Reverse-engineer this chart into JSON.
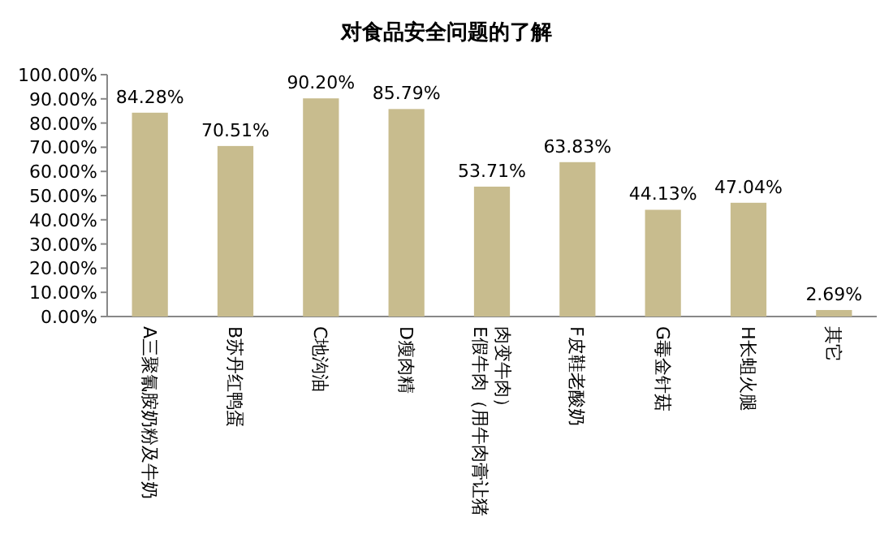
{
  "chart_data": {
    "type": "bar",
    "title": "对食品安全问题的了解",
    "categories": [
      "A三聚氰胺奶粉及牛奶",
      "B苏丹红鸭蛋",
      "C地沟油",
      "D瘦肉精",
      "E假牛肉（用牛肉膏让猪肉变牛肉）",
      "F皮鞋老酸奶",
      "G毒金针菇",
      "H长蛆火腿",
      "其它"
    ],
    "values": [
      84.28,
      70.51,
      90.2,
      85.79,
      53.71,
      63.83,
      44.13,
      47.04,
      2.69
    ],
    "value_labels": [
      "84.28%",
      "70.51%",
      "90.20%",
      "85.79%",
      "53.71%",
      "63.83%",
      "44.13%",
      "47.04%",
      "2.69%"
    ],
    "color": "#c8bc8e",
    "ylim": [
      0,
      100
    ],
    "yticks": [
      {
        "value": 0,
        "label": "0.00%"
      },
      {
        "value": 10,
        "label": "10.00%"
      },
      {
        "value": 20,
        "label": "20.00%"
      },
      {
        "value": 30,
        "label": "30.00%"
      },
      {
        "value": 40,
        "label": "40.00%"
      },
      {
        "value": 50,
        "label": "50.00%"
      },
      {
        "value": 60,
        "label": "60.00%"
      },
      {
        "value": 70,
        "label": "70.00%"
      },
      {
        "value": 80,
        "label": "80.00%"
      },
      {
        "value": 90,
        "label": "90.00%"
      },
      {
        "value": 100,
        "label": "100.00%"
      }
    ]
  }
}
